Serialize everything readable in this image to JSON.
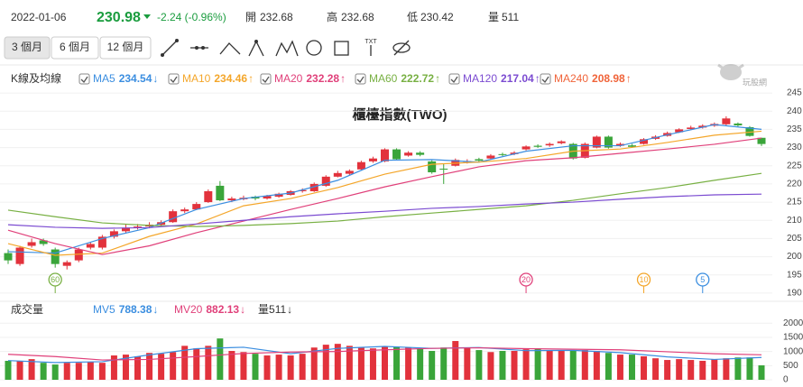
{
  "header": {
    "date": "2022-01-06",
    "close": 230.98,
    "change": {
      "value": -2.24,
      "label": "-2.24 (-0.96%)"
    },
    "open_label": "開",
    "open": 232.68,
    "high_label": "高",
    "high": 232.68,
    "low_label": "低",
    "low": 230.42,
    "volume_label": "量",
    "volume": 511,
    "down_color": "#1a9c3e"
  },
  "toolbar": {
    "periods": [
      "3 個月",
      "6 個月",
      "12 個月"
    ],
    "text_tool": "TXT"
  },
  "watermark": "玩股網",
  "chart_data": [
    {
      "type": "candlestick",
      "legend_title": "K線及均線",
      "title": "櫃檯指數(TWO)",
      "up_color": "#e2323c",
      "down_color": "#3aa53a",
      "open": [
        201,
        198,
        203,
        204.5,
        202,
        197.5,
        199,
        202.5,
        202.5,
        205.5,
        207,
        208,
        208.3,
        208.8,
        209.5,
        212.5,
        213,
        215,
        219.5,
        215.5,
        215.8,
        216.5,
        216,
        216.5,
        217,
        218,
        218,
        219.5,
        222,
        222.8,
        224,
        226.2,
        226.2,
        229.5,
        227.8,
        228.6,
        226.2,
        224.2,
        225,
        226,
        226.8,
        227,
        228.2,
        228.2,
        229.5,
        230.5,
        230.6,
        231.2,
        231,
        227.2,
        230,
        233,
        230.5,
        230.6,
        231,
        232.4,
        233.2,
        234.2,
        235.1,
        235.5,
        236,
        236.4,
        236.6,
        235.6,
        232.68
      ],
      "high": [
        202,
        203,
        205,
        205,
        202.5,
        199,
        202.5,
        204,
        206,
        207.5,
        209,
        209,
        209.5,
        210,
        213,
        213.5,
        215,
        218.5,
        220.8,
        216.5,
        216.8,
        216.8,
        217,
        217.6,
        218.3,
        218.8,
        220.4,
        222.4,
        223.6,
        224,
        226.4,
        227.5,
        229.8,
        229.8,
        229,
        229,
        226.5,
        225.5,
        227,
        226.8,
        227.2,
        228.2,
        228.6,
        229,
        230.6,
        230.9,
        231.4,
        232,
        231.3,
        231.4,
        233.3,
        233.3,
        231.4,
        231,
        232.6,
        233.4,
        234.4,
        235.3,
        236,
        236.4,
        236.9,
        238.6,
        236.9,
        235.9,
        232.68
      ],
      "low": [
        198,
        197.5,
        202.5,
        203,
        197,
        196.5,
        198.5,
        202,
        202,
        205,
        206.5,
        207.5,
        207.8,
        208.3,
        209.3,
        212,
        212.8,
        214.8,
        215.3,
        215,
        215.5,
        215.5,
        215.7,
        216.2,
        216.8,
        217.6,
        217.8,
        219.2,
        221.8,
        222.4,
        223.7,
        225.8,
        226,
        226.5,
        227.5,
        227.6,
        222.8,
        220,
        224.8,
        225.6,
        226,
        226.8,
        227.6,
        227.9,
        229.2,
        229.9,
        230.2,
        230.9,
        226.7,
        227,
        229.8,
        229.7,
        230.2,
        229.9,
        230.8,
        232.1,
        233,
        234,
        234.8,
        235.2,
        235.7,
        236.1,
        235.7,
        233,
        230.42
      ],
      "close": [
        199,
        202.5,
        204,
        203.5,
        198,
        198.5,
        202,
        203.5,
        205.5,
        207,
        208,
        208.3,
        208.8,
        209.5,
        212.5,
        213,
        214.5,
        218,
        215.5,
        216,
        216.2,
        216,
        216.7,
        217.3,
        218,
        218.3,
        220,
        222,
        223,
        223.6,
        226,
        227,
        229.5,
        226.8,
        228.6,
        228,
        223.2,
        224,
        226.6,
        226.3,
        226.4,
        227.8,
        228,
        228.6,
        230.3,
        230.2,
        231,
        231.7,
        227,
        231,
        233,
        230,
        231,
        230.2,
        232.3,
        233,
        234,
        235,
        235.5,
        236,
        236.5,
        238,
        236.1,
        233.2,
        230.98
      ],
      "ylim": [
        188,
        247
      ],
      "yticks": [
        190,
        195,
        200,
        205,
        210,
        215,
        220,
        225,
        230,
        235,
        240,
        245
      ],
      "grid": true,
      "series": [
        {
          "name": "MA5",
          "color": "#3b8ee0",
          "last": 234.54,
          "trend": "↓",
          "x": [
            0,
            4,
            8,
            12,
            16,
            20,
            24,
            28,
            32,
            36,
            40,
            44,
            48,
            52,
            56,
            60,
            64
          ],
          "values": [
            201.4,
            201,
            205,
            208,
            213,
            216,
            217.5,
            221,
            226.5,
            226.7,
            226,
            229,
            230.5,
            230.5,
            233.5,
            236.3,
            235
          ]
        },
        {
          "name": "MA10",
          "color": "#f4a62a",
          "last": 234.46,
          "trend": "↑",
          "x": [
            0,
            4,
            8,
            12,
            16,
            20,
            24,
            28,
            32,
            36,
            40,
            44,
            48,
            52,
            56,
            60,
            64
          ],
          "values": [
            203.6,
            200.4,
            201,
            205.6,
            209,
            214,
            216,
            219,
            222.7,
            225.4,
            226,
            227,
            229,
            229.6,
            231.4,
            233.4,
            234.5
          ]
        },
        {
          "name": "MA20",
          "color": "#e0407a",
          "last": 232.28,
          "trend": "↑",
          "x": [
            0,
            4,
            8,
            12,
            16,
            20,
            24,
            28,
            32,
            36,
            40,
            44,
            48,
            52,
            56,
            60,
            64
          ],
          "values": [
            207.3,
            203.6,
            200.6,
            203,
            206.6,
            209.8,
            213,
            216,
            219.2,
            222,
            224.7,
            226.4,
            227.2,
            228.4,
            229.6,
            230.9,
            232.6
          ]
        },
        {
          "name": "MA60",
          "color": "#78b043",
          "last": 222.72,
          "trend": "↑",
          "x": [
            0,
            4,
            8,
            12,
            16,
            20,
            24,
            28,
            32,
            36,
            40,
            44,
            48,
            52,
            56,
            60,
            64
          ],
          "values": [
            212.8,
            211,
            209.3,
            208.6,
            208.3,
            208.6,
            209.1,
            209.8,
            211,
            212,
            213,
            214,
            215.5,
            217.3,
            219,
            221,
            222.9
          ]
        },
        {
          "name": "MA120",
          "color": "#7b4bd1",
          "last": 217.04,
          "trend": "↑",
          "x": [
            0,
            4,
            8,
            12,
            16,
            20,
            24,
            28,
            32,
            36,
            40,
            44,
            48,
            52,
            56,
            60,
            64
          ],
          "values": [
            208.8,
            208.1,
            207.8,
            208,
            209,
            210,
            211,
            211.8,
            212.5,
            213.3,
            213.8,
            214.5,
            215,
            215.8,
            216.5,
            217,
            217.2
          ]
        },
        {
          "name": "MA240",
          "color": "#f0643a",
          "last": 208.98,
          "trend": "↑"
        }
      ],
      "period_markers": [
        {
          "value": 60,
          "color": "#78b043"
        },
        {
          "value": 20,
          "color": "#e0407a"
        },
        {
          "value": 10,
          "color": "#f4a62a"
        },
        {
          "value": 5,
          "color": "#3b8ee0"
        }
      ]
    },
    {
      "type": "bar",
      "title": "成交量",
      "values": [
        670,
        670,
        730,
        600,
        540,
        600,
        600,
        630,
        600,
        860,
        890,
        830,
        950,
        920,
        980,
        1200,
        1110,
        1200,
        1460,
        1020,
        980,
        920,
        860,
        890,
        860,
        920,
        1140,
        1240,
        1270,
        1200,
        1140,
        1110,
        1170,
        1170,
        1140,
        1110,
        1020,
        1140,
        1370,
        1140,
        1050,
        980,
        1020,
        1020,
        1080,
        1110,
        1050,
        1020,
        1020,
        1050,
        1020,
        950,
        890,
        890,
        830,
        760,
        700,
        730,
        700,
        670,
        730,
        760,
        790,
        790,
        511
      ],
      "ylim": [
        0,
        2200
      ],
      "yticks": [
        0,
        500,
        1000,
        1500,
        2000
      ],
      "series": [
        {
          "name": "MV5",
          "color": "#3b8ee0",
          "last": 788.38,
          "trend": "↓",
          "x": [
            0,
            4,
            8,
            12,
            16,
            20,
            24,
            28,
            32,
            36,
            40,
            44,
            48,
            52,
            56,
            60,
            64
          ],
          "values": [
            680,
            610,
            640,
            880,
            1100,
            1150,
            920,
            1110,
            1180,
            1110,
            1140,
            1030,
            1040,
            960,
            810,
            720,
            788
          ]
        },
        {
          "name": "MV20",
          "color": "#e0407a",
          "last": 882.13,
          "trend": "↓",
          "x": [
            0,
            4,
            8,
            12,
            16,
            20,
            24,
            28,
            32,
            36,
            40,
            44,
            48,
            52,
            56,
            60,
            64
          ],
          "values": [
            900,
            820,
            700,
            720,
            820,
            930,
            980,
            1000,
            1060,
            1110,
            1130,
            1100,
            1080,
            1060,
            990,
            920,
            882
          ]
        }
      ],
      "current_label": "量",
      "current": 511,
      "current_trend": "↓"
    }
  ]
}
